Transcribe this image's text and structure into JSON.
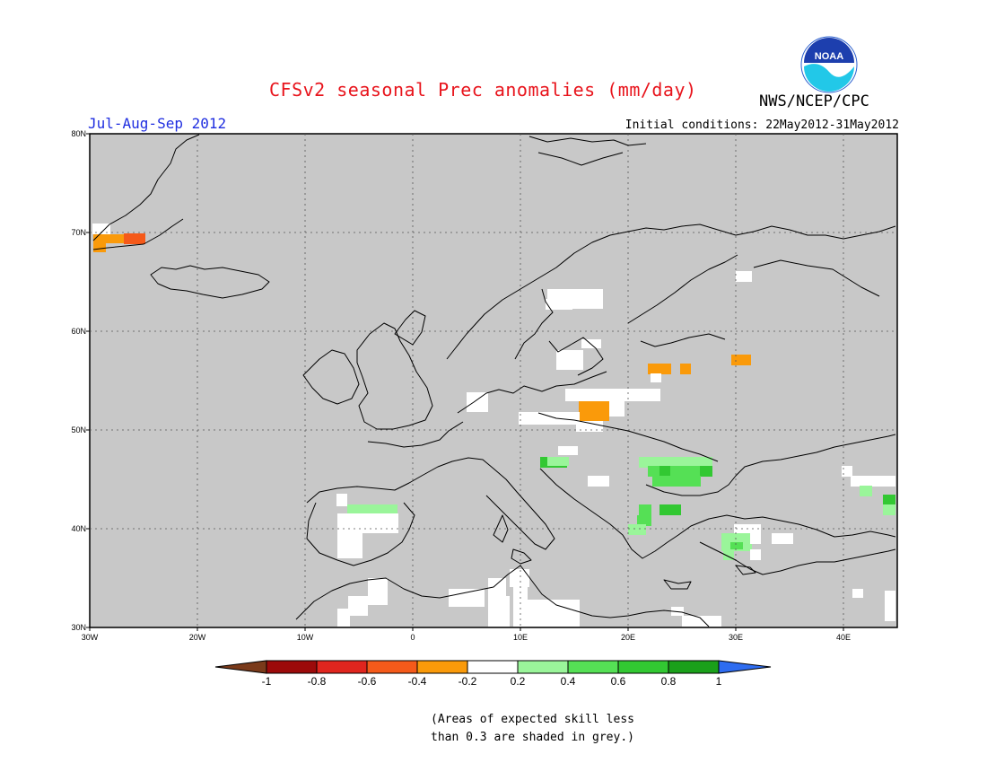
{
  "header": {
    "title": "CFSv2 seasonal Prec anomalies (mm/day)",
    "brand": "NWS/NCEP/CPC",
    "season": "Jul-Aug-Sep 2012",
    "init_conditions": "Initial conditions: 22May2012-31May2012",
    "logo_icon": "noaa-logo-icon",
    "logo_text": "NOAA"
  },
  "map": {
    "lat_ticks": [
      "80N",
      "70N",
      "60N",
      "50N",
      "40N",
      "30N"
    ],
    "lon_ticks": [
      "30W",
      "20W",
      "10W",
      "0",
      "10E",
      "20E",
      "30E",
      "40E"
    ],
    "background_color": "#c8c8c8"
  },
  "legend": {
    "labels": [
      "-1",
      "-0.8",
      "-0.6",
      "-0.4",
      "-0.2",
      "0.2",
      "0.4",
      "0.6",
      "0.8",
      "1"
    ],
    "colors": [
      "#9c0a0a",
      "#e0251e",
      "#f55a1a",
      "#fa9a0a",
      "#ffffff",
      "#9af59a",
      "#55e055",
      "#32c832",
      "#1aa01a"
    ],
    "low_arrow_color": "#7a3a1a",
    "high_arrow_color": "#2e6cf0"
  },
  "footnote": {
    "line1": "(Areas of expected skill less",
    "line2": "than 0.3 are shaded in grey.)"
  }
}
